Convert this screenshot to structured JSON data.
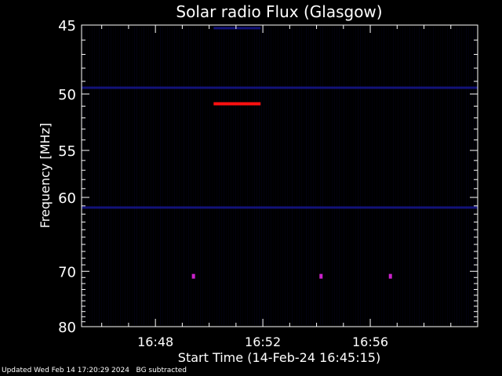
{
  "chart_data": {
    "type": "heatmap",
    "title": "Solar radio Flux (Glasgow)",
    "ylabel": "Frequency [MHz]",
    "xlabel": "Start Time (14-Feb-24 16:45:15)",
    "ylim": [
      45,
      80
    ],
    "y_scale": "reciprocal",
    "y_ticks": [
      45,
      50,
      55,
      60,
      70,
      80
    ],
    "x_range": [
      "16:45:15",
      "17:00:00"
    ],
    "x_ticks": [
      "16:48",
      "16:52",
      "16:56"
    ],
    "colors": {
      "background": "#000000",
      "noise": "#0a0a40",
      "band": "#1818a0",
      "burst": "#ff1010",
      "spot": "#cc22cc"
    },
    "features": [
      {
        "kind": "interference_burst",
        "freq_mhz": 50.8,
        "time_start": "16:50:10",
        "time_end": "16:51:55",
        "color": "burst"
      },
      {
        "kind": "band",
        "freq_mhz": 49.5,
        "time_start": "16:45:15",
        "time_end": "17:00:00",
        "color": "band"
      },
      {
        "kind": "band",
        "freq_mhz": 61.2,
        "time_start": "16:45:15",
        "time_end": "17:00:00",
        "color": "band"
      },
      {
        "kind": "band",
        "freq_mhz": 45.2,
        "time_start": "16:50:10",
        "time_end": "16:51:55",
        "color": "band"
      },
      {
        "kind": "spot",
        "freq_mhz": 70.8,
        "time": "16:49:25",
        "color": "spot"
      },
      {
        "kind": "spot",
        "freq_mhz": 70.8,
        "time": "16:54:10",
        "color": "spot"
      },
      {
        "kind": "spot",
        "freq_mhz": 70.8,
        "time": "16:56:45",
        "color": "spot"
      }
    ]
  },
  "footer": {
    "updated": "Updated Wed Feb 14 17:20:29 2024",
    "note": "BG subtracted"
  }
}
